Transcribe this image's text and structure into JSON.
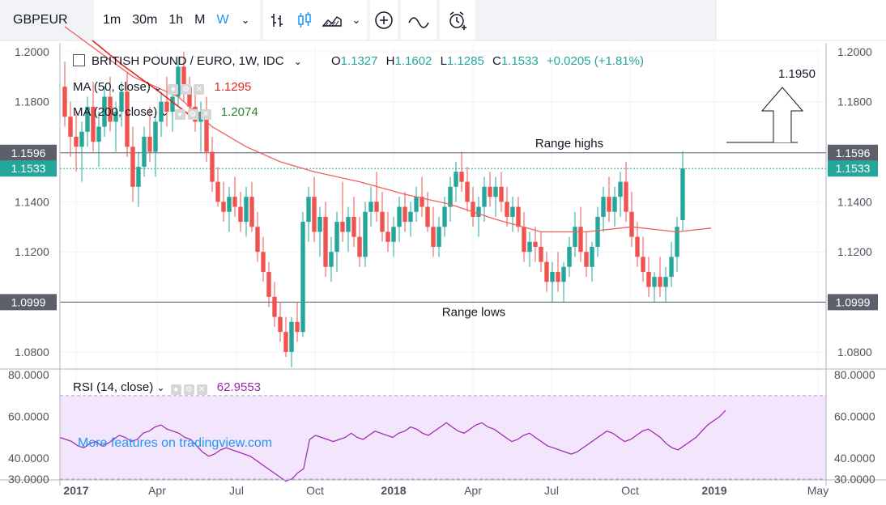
{
  "toolbar": {
    "symbol": "GBPEUR",
    "intervals": [
      {
        "label": "1m",
        "active": false
      },
      {
        "label": "30m",
        "active": false
      },
      {
        "label": "1h",
        "active": false
      },
      {
        "label": "M",
        "active": false
      },
      {
        "label": "W",
        "active": true
      }
    ],
    "icons": [
      "bar-style-icon",
      "candles-icon",
      "area-chart-icon",
      "chevron-down-icon",
      "add-compare-icon",
      "indicators-icon",
      "alert-icon"
    ]
  },
  "legend": {
    "title": "BRITISH POUND / EURO, 1W, IDC",
    "open_label": "O",
    "open": "1.1327",
    "high_label": "H",
    "high": "1.1602",
    "low_label": "L",
    "low": "1.1285",
    "close_label": "C",
    "close": "1.1533",
    "change": "+0.0205 (+1.81%)",
    "ma50_label": "MA (50, close)",
    "ma50_value": "1.1295",
    "ma200_label": "MA (200, close)",
    "ma200_value": "1.2074",
    "rsi_label": "RSI (14, close)",
    "rsi_value": "62.9553"
  },
  "watermark": "More features on tradingview.com",
  "colors": {
    "up": "#26a69a",
    "down": "#ef5350",
    "ma50": "#f06060",
    "ma200": "#e3261f",
    "rsi": "#9c27b0",
    "rsi_band": "#f3e5fb",
    "accent": "#2196f3"
  },
  "chart_data": [
    {
      "type": "candlestick",
      "title": "BRITISH POUND / EURO, 1W, IDC",
      "ylim": [
        1.0735,
        1.2035
      ],
      "yticks": [
        "1.2000",
        "1.1800",
        "1.1400",
        "1.1200",
        "1.0800"
      ],
      "x_labels": [
        "2017",
        "Apr",
        "Jul",
        "Oct",
        "2018",
        "Apr",
        "Jul",
        "Oct",
        "2019",
        "May"
      ],
      "price_tags": [
        {
          "value": 1.1596,
          "label": "1.1596",
          "kind": "level"
        },
        {
          "value": 1.1533,
          "label": "1.1533",
          "kind": "last"
        },
        {
          "value": 1.0999,
          "label": "1.0999",
          "kind": "level"
        }
      ],
      "annotations": [
        {
          "text": "Range highs",
          "value": 1.1596
        },
        {
          "text": "Range lows",
          "value": 1.0999
        },
        {
          "text": "1.1950",
          "value": 1.195
        }
      ],
      "candles": [
        [
          1.186,
          1.196,
          1.17,
          1.174
        ],
        [
          1.174,
          1.18,
          1.158,
          1.166
        ],
        [
          1.166,
          1.176,
          1.152,
          1.162
        ],
        [
          1.162,
          1.172,
          1.148,
          1.168
        ],
        [
          1.168,
          1.182,
          1.162,
          1.178
        ],
        [
          1.178,
          1.188,
          1.16,
          1.164
        ],
        [
          1.164,
          1.176,
          1.154,
          1.17
        ],
        [
          1.17,
          1.186,
          1.166,
          1.182
        ],
        [
          1.182,
          1.19,
          1.168,
          1.172
        ],
        [
          1.172,
          1.18,
          1.16,
          1.176
        ],
        [
          1.176,
          1.188,
          1.17,
          1.184
        ],
        [
          1.184,
          1.192,
          1.158,
          1.162
        ],
        [
          1.162,
          1.17,
          1.14,
          1.146
        ],
        [
          1.146,
          1.16,
          1.138,
          1.154
        ],
        [
          1.154,
          1.17,
          1.15,
          1.166
        ],
        [
          1.166,
          1.178,
          1.156,
          1.16
        ],
        [
          1.16,
          1.176,
          1.15,
          1.172
        ],
        [
          1.172,
          1.184,
          1.166,
          1.18
        ],
        [
          1.18,
          1.19,
          1.17,
          1.176
        ],
        [
          1.176,
          1.184,
          1.168,
          1.182
        ],
        [
          1.182,
          1.198,
          1.178,
          1.194
        ],
        [
          1.194,
          1.2,
          1.18,
          1.186
        ],
        [
          1.186,
          1.19,
          1.174,
          1.178
        ],
        [
          1.178,
          1.184,
          1.168,
          1.172
        ],
        [
          1.172,
          1.18,
          1.16,
          1.176
        ],
        [
          1.176,
          1.182,
          1.156,
          1.16
        ],
        [
          1.16,
          1.166,
          1.144,
          1.148
        ],
        [
          1.148,
          1.154,
          1.138,
          1.14
        ],
        [
          1.14,
          1.148,
          1.132,
          1.136
        ],
        [
          1.136,
          1.146,
          1.128,
          1.142
        ],
        [
          1.142,
          1.15,
          1.134,
          1.138
        ],
        [
          1.138,
          1.144,
          1.128,
          1.132
        ],
        [
          1.132,
          1.146,
          1.126,
          1.142
        ],
        [
          1.142,
          1.148,
          1.128,
          1.13
        ],
        [
          1.13,
          1.136,
          1.116,
          1.12
        ],
        [
          1.12,
          1.126,
          1.108,
          1.112
        ],
        [
          1.112,
          1.116,
          1.098,
          1.102
        ],
        [
          1.102,
          1.108,
          1.09,
          1.094
        ],
        [
          1.094,
          1.1,
          1.084,
          1.088
        ],
        [
          1.088,
          1.094,
          1.078,
          1.08
        ],
        [
          1.08,
          1.094,
          1.074,
          1.092
        ],
        [
          1.092,
          1.1,
          1.084,
          1.088
        ],
        [
          1.088,
          1.136,
          1.086,
          1.132
        ],
        [
          1.132,
          1.146,
          1.124,
          1.142
        ],
        [
          1.142,
          1.15,
          1.124,
          1.128
        ],
        [
          1.128,
          1.138,
          1.118,
          1.134
        ],
        [
          1.134,
          1.14,
          1.11,
          1.114
        ],
        [
          1.114,
          1.126,
          1.108,
          1.12
        ],
        [
          1.12,
          1.136,
          1.112,
          1.132
        ],
        [
          1.132,
          1.148,
          1.124,
          1.128
        ],
        [
          1.128,
          1.138,
          1.12,
          1.134
        ],
        [
          1.134,
          1.142,
          1.122,
          1.126
        ],
        [
          1.126,
          1.134,
          1.114,
          1.118
        ],
        [
          1.118,
          1.14,
          1.114,
          1.136
        ],
        [
          1.136,
          1.146,
          1.13,
          1.14
        ],
        [
          1.14,
          1.152,
          1.132,
          1.136
        ],
        [
          1.136,
          1.144,
          1.124,
          1.128
        ],
        [
          1.128,
          1.136,
          1.12,
          1.124
        ],
        [
          1.124,
          1.134,
          1.118,
          1.13
        ],
        [
          1.13,
          1.142,
          1.124,
          1.138
        ],
        [
          1.138,
          1.144,
          1.128,
          1.132
        ],
        [
          1.132,
          1.14,
          1.126,
          1.136
        ],
        [
          1.136,
          1.146,
          1.132,
          1.142
        ],
        [
          1.142,
          1.15,
          1.134,
          1.138
        ],
        [
          1.138,
          1.144,
          1.128,
          1.13
        ],
        [
          1.13,
          1.138,
          1.118,
          1.122
        ],
        [
          1.122,
          1.134,
          1.118,
          1.13
        ],
        [
          1.13,
          1.142,
          1.126,
          1.138
        ],
        [
          1.138,
          1.15,
          1.132,
          1.146
        ],
        [
          1.146,
          1.156,
          1.14,
          1.152
        ],
        [
          1.152,
          1.16,
          1.144,
          1.148
        ],
        [
          1.148,
          1.154,
          1.136,
          1.14
        ],
        [
          1.14,
          1.146,
          1.13,
          1.134
        ],
        [
          1.134,
          1.142,
          1.126,
          1.138
        ],
        [
          1.138,
          1.15,
          1.132,
          1.146
        ],
        [
          1.146,
          1.152,
          1.138,
          1.142
        ],
        [
          1.142,
          1.15,
          1.134,
          1.146
        ],
        [
          1.146,
          1.152,
          1.136,
          1.14
        ],
        [
          1.14,
          1.146,
          1.13,
          1.134
        ],
        [
          1.134,
          1.142,
          1.128,
          1.138
        ],
        [
          1.138,
          1.142,
          1.128,
          1.13
        ],
        [
          1.13,
          1.136,
          1.116,
          1.12
        ],
        [
          1.12,
          1.128,
          1.114,
          1.124
        ],
        [
          1.124,
          1.13,
          1.116,
          1.122
        ],
        [
          1.122,
          1.128,
          1.112,
          1.116
        ],
        [
          1.116,
          1.12,
          1.104,
          1.108
        ],
        [
          1.108,
          1.116,
          1.1,
          1.112
        ],
        [
          1.112,
          1.12,
          1.104,
          1.108
        ],
        [
          1.108,
          1.116,
          1.1,
          1.114
        ],
        [
          1.114,
          1.126,
          1.11,
          1.122
        ],
        [
          1.122,
          1.136,
          1.118,
          1.13
        ],
        [
          1.13,
          1.138,
          1.116,
          1.12
        ],
        [
          1.12,
          1.128,
          1.11,
          1.114
        ],
        [
          1.114,
          1.124,
          1.108,
          1.122
        ],
        [
          1.122,
          1.138,
          1.118,
          1.134
        ],
        [
          1.134,
          1.146,
          1.128,
          1.142
        ],
        [
          1.142,
          1.15,
          1.132,
          1.136
        ],
        [
          1.136,
          1.146,
          1.13,
          1.142
        ],
        [
          1.142,
          1.152,
          1.134,
          1.148
        ],
        [
          1.148,
          1.156,
          1.132,
          1.136
        ],
        [
          1.136,
          1.144,
          1.122,
          1.126
        ],
        [
          1.126,
          1.132,
          1.114,
          1.118
        ],
        [
          1.118,
          1.126,
          1.108,
          1.112
        ],
        [
          1.112,
          1.118,
          1.102,
          1.106
        ],
        [
          1.106,
          1.112,
          1.1,
          1.11
        ],
        [
          1.11,
          1.118,
          1.102,
          1.106
        ],
        [
          1.106,
          1.114,
          1.1,
          1.11
        ],
        [
          1.11,
          1.124,
          1.106,
          1.118
        ],
        [
          1.118,
          1.134,
          1.112,
          1.13
        ],
        [
          1.1327,
          1.1602,
          1.1285,
          1.1533
        ]
      ],
      "ma50": [
        [
          0,
          1.21
        ],
        [
          6,
          1.2
        ],
        [
          12,
          1.19
        ],
        [
          20,
          1.182
        ],
        [
          26,
          1.17
        ],
        [
          32,
          1.162
        ],
        [
          38,
          1.156
        ],
        [
          44,
          1.152
        ],
        [
          52,
          1.148
        ],
        [
          60,
          1.143
        ],
        [
          68,
          1.139
        ],
        [
          76,
          1.133
        ],
        [
          84,
          1.128
        ],
        [
          92,
          1.128
        ],
        [
          100,
          1.13
        ],
        [
          108,
          1.128
        ],
        [
          114,
          1.1295
        ]
      ],
      "ma200": [
        [
          0,
          1.2074
        ]
      ]
    },
    {
      "type": "line",
      "title": "RSI (14, close)",
      "ylim": [
        30,
        82
      ],
      "yticks": [
        "80.0000",
        "60.0000",
        "40.0000",
        "30.0000"
      ],
      "band": [
        30,
        70
      ],
      "series": [
        {
          "values": [
            50,
            49,
            48,
            46,
            45,
            47,
            48,
            46,
            47,
            49,
            51,
            50,
            48,
            49,
            52,
            53,
            55,
            56,
            54,
            53,
            52,
            50,
            49,
            46,
            43,
            41,
            42,
            44,
            45,
            44,
            43,
            42,
            41,
            39,
            37,
            35,
            33,
            31,
            29,
            30,
            33,
            35,
            49,
            51,
            50,
            49,
            48,
            49,
            50,
            52,
            50,
            49,
            51,
            53,
            52,
            51,
            50,
            52,
            53,
            55,
            54,
            52,
            51,
            53,
            55,
            57,
            55,
            53,
            52,
            54,
            56,
            57,
            55,
            54,
            52,
            50,
            48,
            49,
            51,
            52,
            50,
            48,
            46,
            45,
            44,
            43,
            42,
            43,
            45,
            47,
            49,
            51,
            53,
            52,
            50,
            48,
            49,
            51,
            53,
            54,
            52,
            50,
            47,
            45,
            44,
            46,
            48,
            50,
            53,
            56,
            58,
            60,
            62.9553
          ]
        }
      ]
    }
  ]
}
